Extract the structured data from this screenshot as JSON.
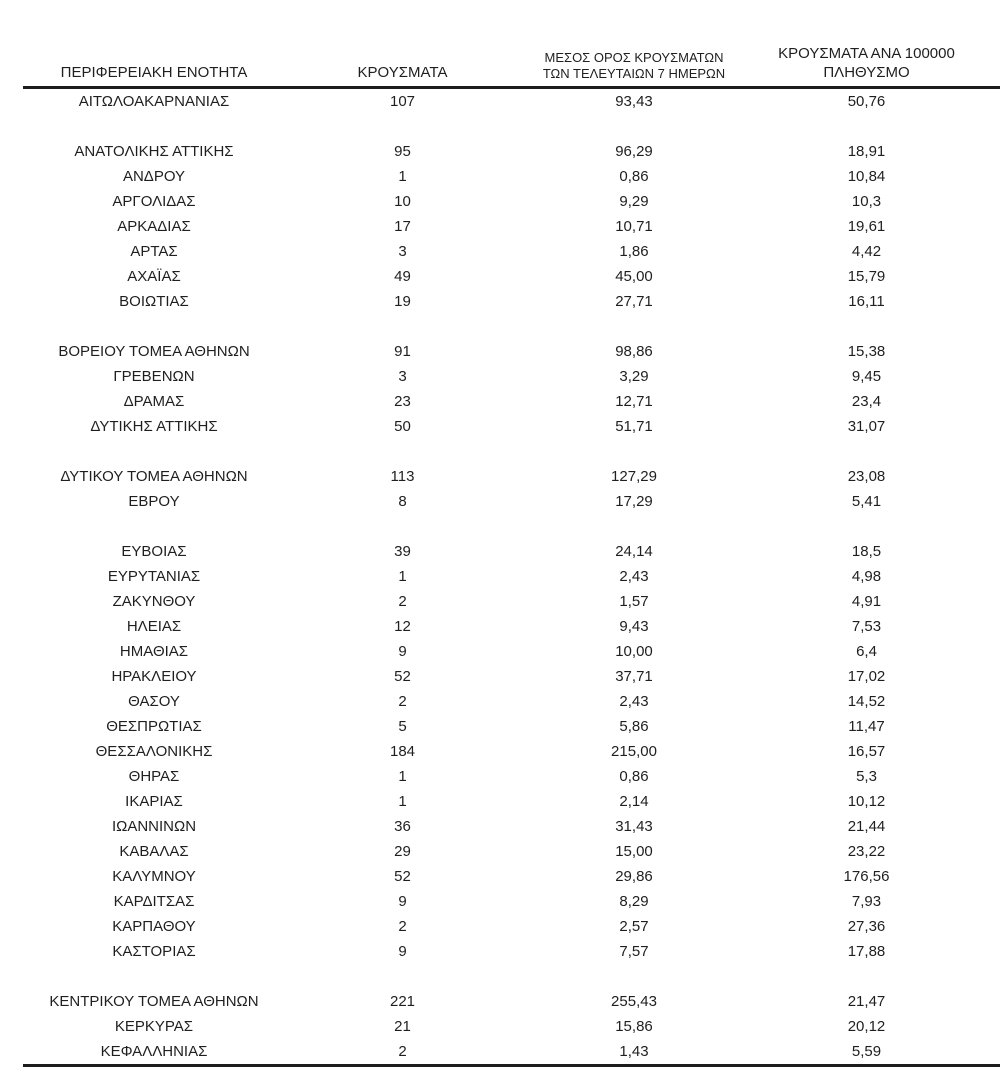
{
  "colors": {
    "background": "#ffffff",
    "text": "#1f1f1f",
    "rule": "#1c1c1c"
  },
  "table": {
    "header": {
      "col1": "ΠΕΡΙΦΕΡΕΙΑΚΗ ΕΝΟΤΗΤΑ",
      "col2": "ΚΡΟΥΣΜΑΤΑ",
      "col3_line1": "ΜΕΣΟΣ ΟΡΟΣ ΚΡΟΥΣΜΑΤΩΝ",
      "col3_line2": "ΤΩΝ ΤΕΛΕΥΤΑΙΩΝ 7 ΗΜΕΡΩΝ",
      "col4_line1": "ΚΡΟΥΣΜΑΤΑ ΑΝΑ 100000",
      "col4_line2": "ΠΛΗΘΥΣΜΟ"
    },
    "rows": [
      {
        "region": "ΑΙΤΩΛΟΑΚΑΡΝΑΝΙΑΣ",
        "cases": "107",
        "avg_7day": "93,43",
        "per_100k": "50,76"
      },
      {
        "spacer": true
      },
      {
        "region": "ΑΝΑΤΟΛΙΚΗΣ ΑΤΤΙΚΗΣ",
        "cases": "95",
        "avg_7day": "96,29",
        "per_100k": "18,91"
      },
      {
        "region": "ΑΝΔΡΟΥ",
        "cases": "1",
        "avg_7day": "0,86",
        "per_100k": "10,84"
      },
      {
        "region": "ΑΡΓΟΛΙΔΑΣ",
        "cases": "10",
        "avg_7day": "9,29",
        "per_100k": "10,3"
      },
      {
        "region": "ΑΡΚΑΔΙΑΣ",
        "cases": "17",
        "avg_7day": "10,71",
        "per_100k": "19,61"
      },
      {
        "region": "ΑΡΤΑΣ",
        "cases": "3",
        "avg_7day": "1,86",
        "per_100k": "4,42"
      },
      {
        "region": "ΑΧΑΪΑΣ",
        "cases": "49",
        "avg_7day": "45,00",
        "per_100k": "15,79"
      },
      {
        "region": "ΒΟΙΩΤΙΑΣ",
        "cases": "19",
        "avg_7day": "27,71",
        "per_100k": "16,11"
      },
      {
        "spacer": true
      },
      {
        "region": "ΒΟΡΕΙΟΥ ΤΟΜΕΑ ΑΘΗΝΩΝ",
        "cases": "91",
        "avg_7day": "98,86",
        "per_100k": "15,38"
      },
      {
        "region": "ΓΡΕΒΕΝΩΝ",
        "cases": "3",
        "avg_7day": "3,29",
        "per_100k": "9,45"
      },
      {
        "region": "ΔΡΑΜΑΣ",
        "cases": "23",
        "avg_7day": "12,71",
        "per_100k": "23,4"
      },
      {
        "region": "ΔΥΤΙΚΗΣ ΑΤΤΙΚΗΣ",
        "cases": "50",
        "avg_7day": "51,71",
        "per_100k": "31,07"
      },
      {
        "spacer": true
      },
      {
        "region": "ΔΥΤΙΚΟΥ ΤΟΜΕΑ ΑΘΗΝΩΝ",
        "cases": "113",
        "avg_7day": "127,29",
        "per_100k": "23,08"
      },
      {
        "region": "ΕΒΡΟΥ",
        "cases": "8",
        "avg_7day": "17,29",
        "per_100k": "5,41"
      },
      {
        "spacer": true
      },
      {
        "region": "ΕΥΒΟΙΑΣ",
        "cases": "39",
        "avg_7day": "24,14",
        "per_100k": "18,5"
      },
      {
        "region": "ΕΥΡΥΤΑΝΙΑΣ",
        "cases": "1",
        "avg_7day": "2,43",
        "per_100k": "4,98"
      },
      {
        "region": "ΖΑΚΥΝΘΟΥ",
        "cases": "2",
        "avg_7day": "1,57",
        "per_100k": "4,91"
      },
      {
        "region": "ΗΛΕΙΑΣ",
        "cases": "12",
        "avg_7day": "9,43",
        "per_100k": "7,53"
      },
      {
        "region": "ΗΜΑΘΙΑΣ",
        "cases": "9",
        "avg_7day": "10,00",
        "per_100k": "6,4"
      },
      {
        "region": "ΗΡΑΚΛΕΙΟΥ",
        "cases": "52",
        "avg_7day": "37,71",
        "per_100k": "17,02"
      },
      {
        "region": "ΘΑΣΟΥ",
        "cases": "2",
        "avg_7day": "2,43",
        "per_100k": "14,52"
      },
      {
        "region": "ΘΕΣΠΡΩΤΙΑΣ",
        "cases": "5",
        "avg_7day": "5,86",
        "per_100k": "11,47"
      },
      {
        "region": "ΘΕΣΣΑΛΟΝΙΚΗΣ",
        "cases": "184",
        "avg_7day": "215,00",
        "per_100k": "16,57"
      },
      {
        "region": "ΘΗΡΑΣ",
        "cases": "1",
        "avg_7day": "0,86",
        "per_100k": "5,3"
      },
      {
        "region": "ΙΚΑΡΙΑΣ",
        "cases": "1",
        "avg_7day": "2,14",
        "per_100k": "10,12"
      },
      {
        "region": "ΙΩΑΝΝΙΝΩΝ",
        "cases": "36",
        "avg_7day": "31,43",
        "per_100k": "21,44"
      },
      {
        "region": "ΚΑΒΑΛΑΣ",
        "cases": "29",
        "avg_7day": "15,00",
        "per_100k": "23,22"
      },
      {
        "region": "ΚΑΛΥΜΝΟΥ",
        "cases": "52",
        "avg_7day": "29,86",
        "per_100k": "176,56"
      },
      {
        "region": "ΚΑΡΔΙΤΣΑΣ",
        "cases": "9",
        "avg_7day": "8,29",
        "per_100k": "7,93"
      },
      {
        "region": "ΚΑΡΠΑΘΟΥ",
        "cases": "2",
        "avg_7day": "2,57",
        "per_100k": "27,36"
      },
      {
        "region": "ΚΑΣΤΟΡΙΑΣ",
        "cases": "9",
        "avg_7day": "7,57",
        "per_100k": "17,88"
      },
      {
        "spacer": true
      },
      {
        "region": "ΚΕΝΤΡΙΚΟΥ ΤΟΜΕΑ ΑΘΗΝΩΝ",
        "cases": "221",
        "avg_7day": "255,43",
        "per_100k": "21,47"
      },
      {
        "region": "ΚΕΡΚΥΡΑΣ",
        "cases": "21",
        "avg_7day": "15,86",
        "per_100k": "20,12"
      },
      {
        "region": "ΚΕΦΑΛΛΗΝΙΑΣ",
        "cases": "2",
        "avg_7day": "1,43",
        "per_100k": "5,59"
      }
    ]
  }
}
